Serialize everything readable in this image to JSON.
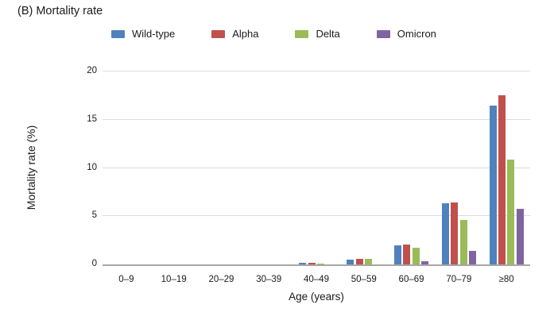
{
  "title": "(B) Mortality rate",
  "chart_data": {
    "type": "bar",
    "title": "(B) Mortality rate",
    "xlabel": "Age (years)",
    "ylabel": "Mortality rate (%)",
    "categories": [
      "0–9",
      "10–19",
      "20–29",
      "30–39",
      "40–49",
      "50–59",
      "60–69",
      "70–79",
      "≥80"
    ],
    "series": [
      {
        "name": "Wild-type",
        "color": "#4F81BD",
        "values": [
          0,
          0,
          0,
          0,
          0.2,
          0.5,
          2.0,
          6.3,
          16.5
        ]
      },
      {
        "name": "Alpha",
        "color": "#C0504D",
        "values": [
          0,
          0,
          0,
          0,
          0.2,
          0.6,
          2.1,
          6.4,
          17.5
        ]
      },
      {
        "name": "Delta",
        "color": "#9BBB59",
        "values": [
          0,
          0,
          0,
          0,
          0.1,
          0.6,
          1.7,
          4.6,
          10.9
        ]
      },
      {
        "name": "Omicron",
        "color": "#8064A2",
        "values": [
          0,
          0,
          0,
          0,
          0,
          0,
          0.3,
          1.4,
          5.8
        ]
      }
    ],
    "ylim": [
      0,
      20
    ],
    "yticks": [
      0,
      5,
      10,
      15,
      20
    ],
    "grid": true,
    "legend_position": "top",
    "axis_color": "#a6a6a6",
    "gridline_color": "#dcdcdc"
  }
}
